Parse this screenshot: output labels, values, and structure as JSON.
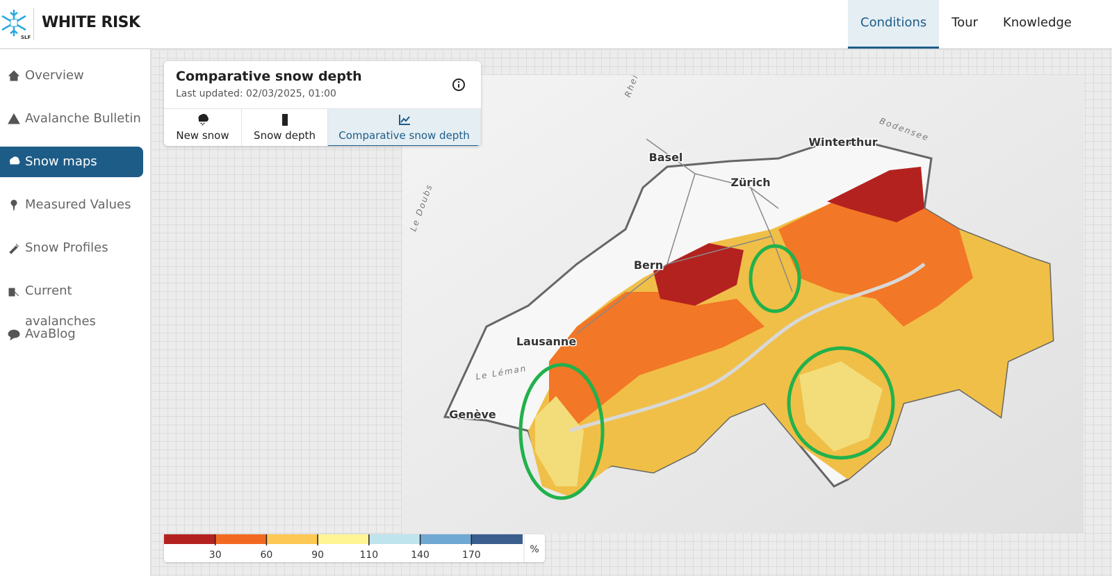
{
  "header": {
    "logo_text": "SLF",
    "title": "WHITE RISK",
    "nav": [
      "Conditions",
      "Tour",
      "Knowledge"
    ],
    "active_nav": 0
  },
  "sidebar": {
    "items": [
      "Overview",
      "Avalanche Bulletin",
      "Snow maps",
      "Measured Values",
      "Snow Profiles",
      "Current avalanches",
      "AvaBlog"
    ],
    "active_item": 2
  },
  "panel": {
    "title": "Comparative snow depth",
    "updated": "Last updated: 02/03/2025, 01:00",
    "tabs": [
      "New snow",
      "Snow depth",
      "Comparative snow depth"
    ],
    "active_tab": 2
  },
  "map": {
    "places": [
      "Basel",
      "Zürich",
      "Winterthur",
      "Bern",
      "Lausanne",
      "Genève"
    ],
    "waters": [
      "Le Léman",
      "Bodensee",
      "Rhein",
      "Le Doubs"
    ]
  },
  "legend": {
    "colors": [
      "#b3221f",
      "#f26a21",
      "#fdc854",
      "#fff594",
      "#bfe4ee",
      "#6fa8d2",
      "#3b5e8f"
    ],
    "ticks": [
      30,
      60,
      90,
      110,
      140,
      170
    ],
    "unit": "%"
  }
}
